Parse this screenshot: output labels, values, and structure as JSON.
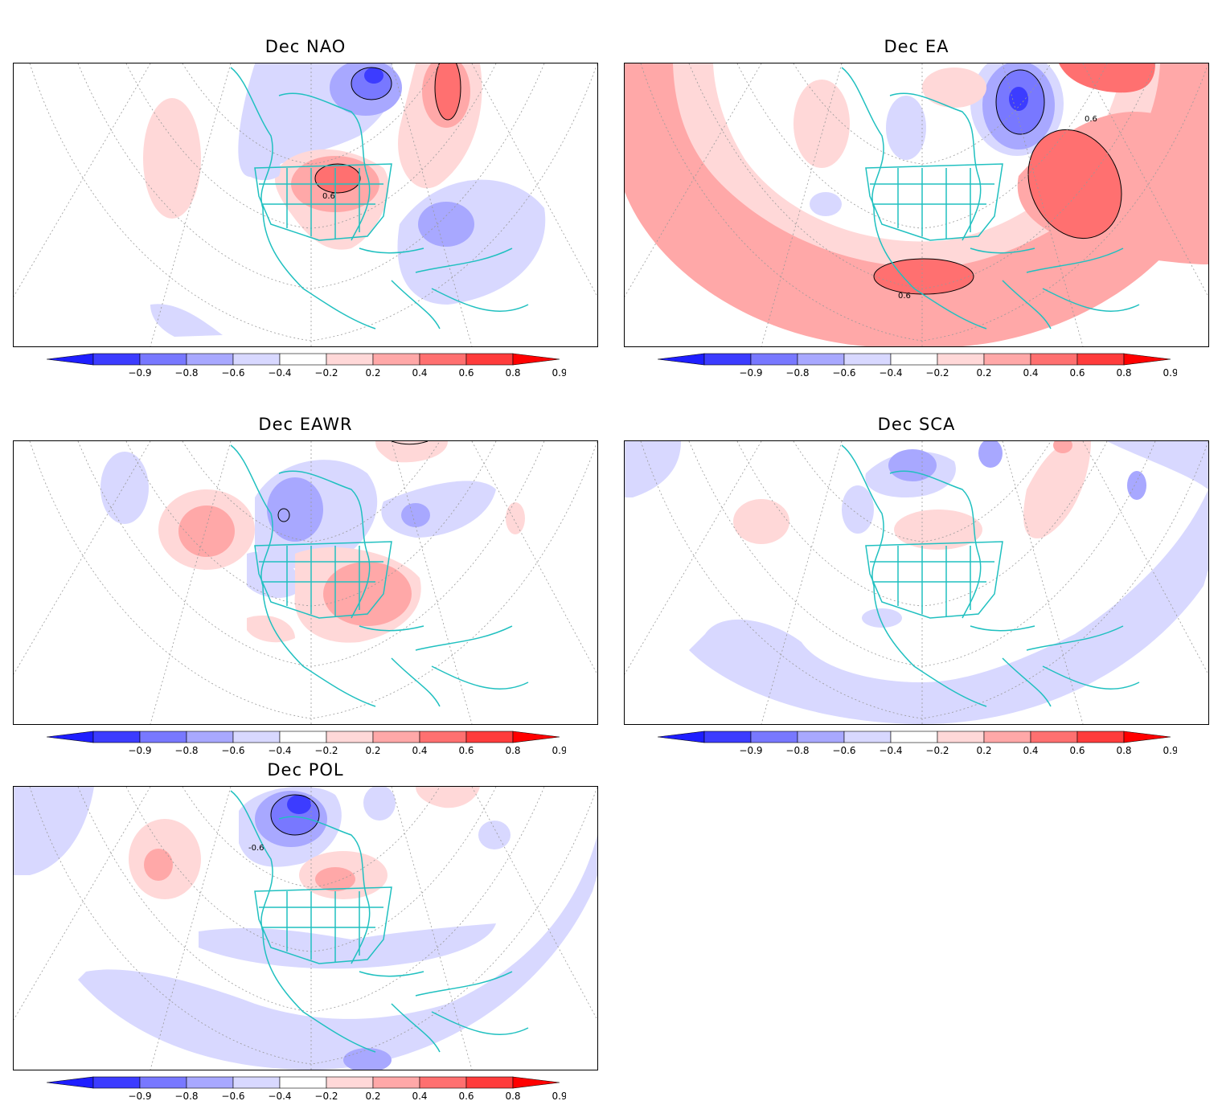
{
  "panels": [
    {
      "id": "nao",
      "title": "Dec NAO"
    },
    {
      "id": "ea",
      "title": "Dec EA"
    },
    {
      "id": "eawr",
      "title": "Dec EAWR"
    },
    {
      "id": "sca",
      "title": "Dec SCA"
    },
    {
      "id": "pol",
      "title": "Dec POL"
    }
  ],
  "colorbar": {
    "labels": [
      "-0.9",
      "-0.8",
      "-0.6",
      "-0.4",
      "-0.2",
      "0.2",
      "0.4",
      "0.6",
      "0.8",
      "0.9"
    ],
    "colors": [
      "#1e1eff",
      "#3c3cff",
      "#7878ff",
      "#a8a8ff",
      "#d8d8ff",
      "#ffffff",
      "#ffd8d8",
      "#ffa8a8",
      "#ff7070",
      "#ff3c3c",
      "#ff0000"
    ]
  },
  "contour_labels": {
    "nao": "0.6",
    "ea_1": "0.6",
    "ea_2": "0.6",
    "pol": "-0.6"
  },
  "colors": {
    "coast": "#20c0c0",
    "grid": "#999999"
  }
}
